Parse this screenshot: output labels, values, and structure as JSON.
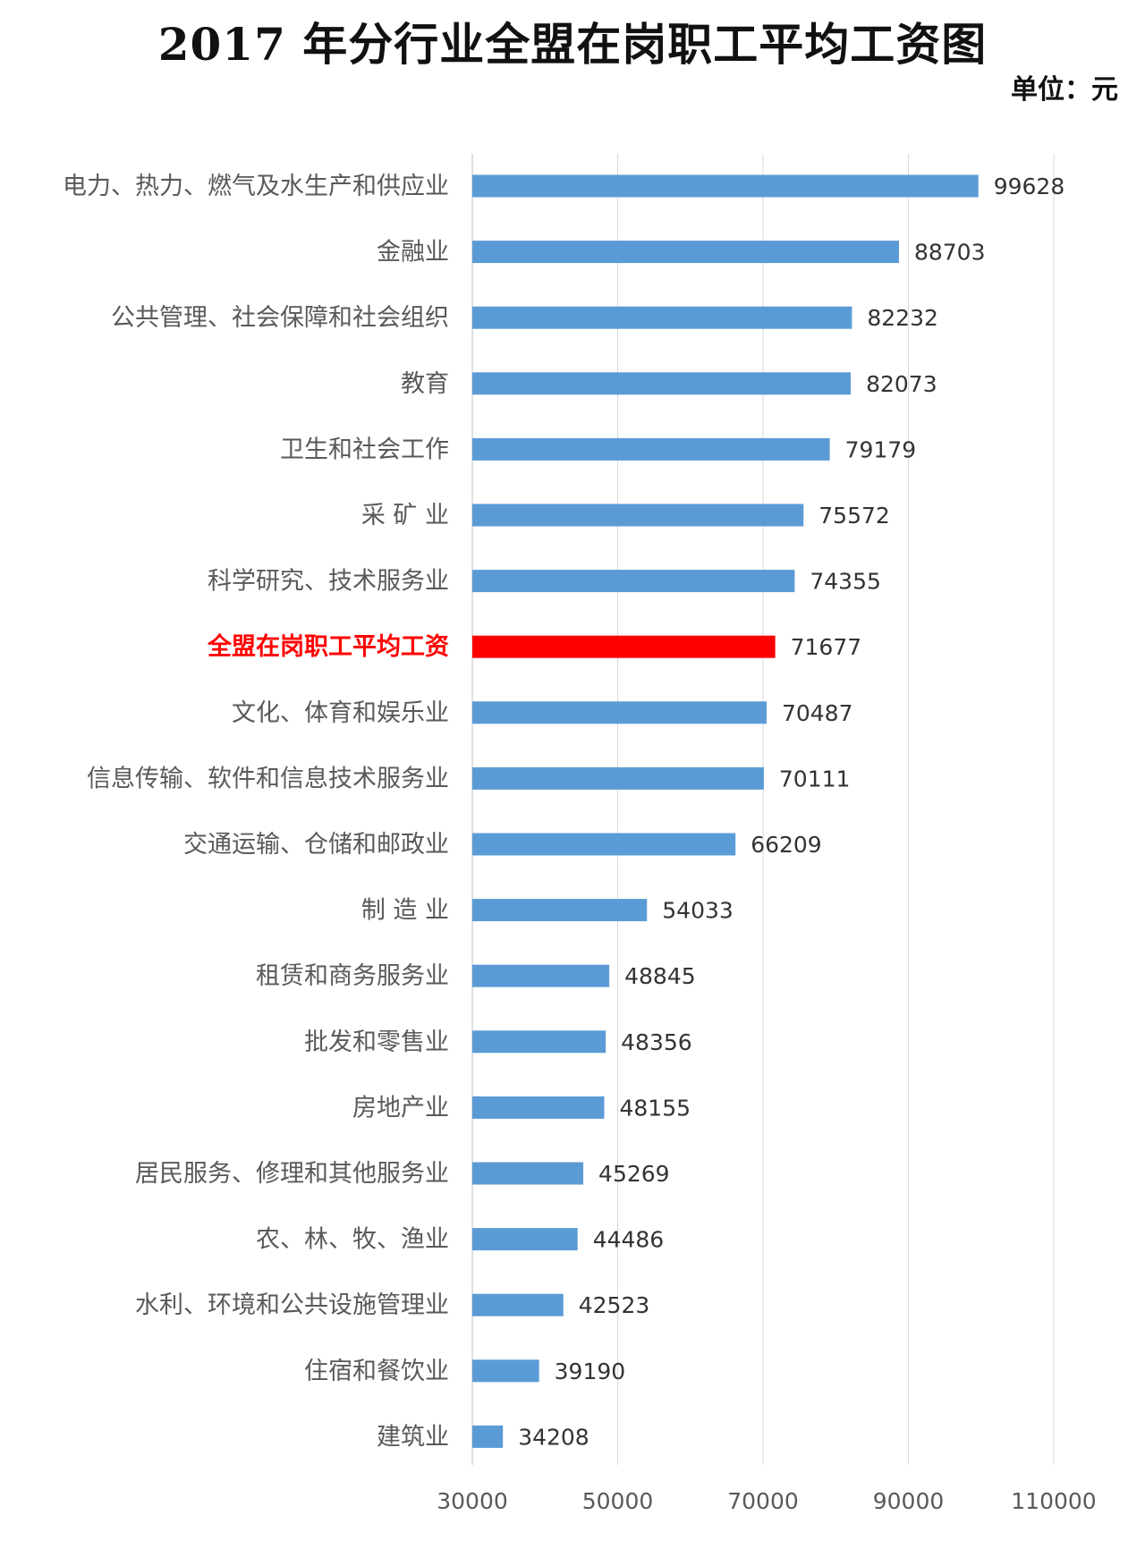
{
  "title": "2017 年分行业全盟在岗职工平均工资图",
  "unit": "单位：元",
  "colors": {
    "bar": "#5b9bd5",
    "highlight": "#ff0000",
    "label": "#595959",
    "grid": "#d9d9d9"
  },
  "chart_data": {
    "type": "bar",
    "orientation": "horizontal",
    "title": "2017 年分行业全盟在岗职工平均工资图",
    "unit": "单位：元",
    "categories": [
      "电力、热力、燃气及水生产和供应业",
      "金融业",
      "公共管理、社会保障和社会组织",
      "教育",
      "卫生和社会工作",
      "采 矿 业",
      "科学研究、技术服务业",
      "全盟在岗职工平均工资",
      "文化、体育和娱乐业",
      "信息传输、软件和信息技术服务业",
      "交通运输、仓储和邮政业",
      "制 造 业",
      "租赁和商务服务业",
      "批发和零售业",
      "房地产业",
      "居民服务、修理和其他服务业",
      "农、林、牧、渔业",
      "水利、环境和公共设施管理业",
      "住宿和餐饮业",
      "建筑业"
    ],
    "values": [
      99628,
      88703,
      82232,
      82073,
      79179,
      75572,
      74355,
      71677,
      70487,
      70111,
      66209,
      54033,
      48845,
      48356,
      48155,
      45269,
      44486,
      42523,
      39190,
      34208
    ],
    "highlight_index": 7,
    "xlim": [
      30000,
      110000
    ],
    "xticks": [
      "30000",
      "50000",
      "70000",
      "90000",
      "110000"
    ],
    "grid": "vertical",
    "legend": "none"
  }
}
